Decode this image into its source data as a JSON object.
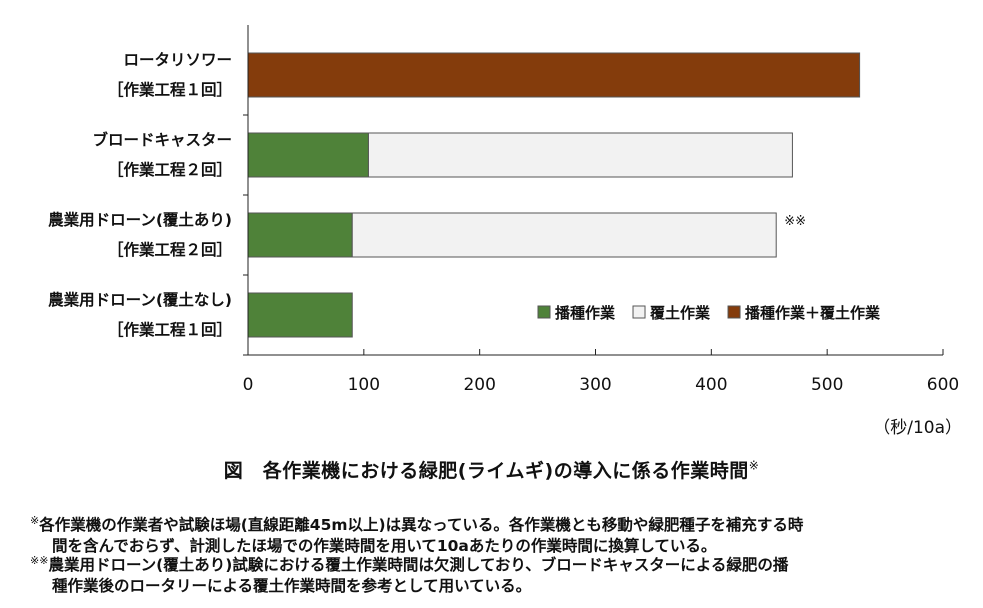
{
  "chart_data": {
    "type": "bar",
    "orientation": "horizontal",
    "stacked": true,
    "categories": [
      {
        "name": "ロータリソワー",
        "sub": "［作業工程１回］"
      },
      {
        "name": "ブロードキャスター",
        "sub": "［作業工程２回］"
      },
      {
        "name": "農業用ドローン(覆土あり)",
        "sub": "［作業工程２回］"
      },
      {
        "name": "農業用ドローン(覆土なし)",
        "sub": "［作業工程１回］"
      }
    ],
    "series": [
      {
        "name": "播種作業",
        "color": "#4f8239",
        "values": [
          0,
          104,
          90,
          90
        ]
      },
      {
        "name": "覆土作業",
        "color": "#f2f2f2",
        "values": [
          0,
          366,
          366,
          0
        ]
      },
      {
        "name": "播種作業＋覆土作業",
        "color": "#843c0c",
        "values": [
          528,
          0,
          0,
          0
        ]
      }
    ],
    "xlim": [
      0,
      600
    ],
    "xticks": [
      "0",
      "100",
      "200",
      "300",
      "400",
      "500",
      "600"
    ],
    "unit_label": "（秒/10a）",
    "bar_annotation": {
      "category_index": 2,
      "text": "※※"
    },
    "grid": false,
    "legend_position": "bottom-right"
  },
  "caption": {
    "text": "図　各作業機における緑肥(ライムギ)の導入に係る作業時間",
    "mark": "※"
  },
  "notes": [
    {
      "mark": "※",
      "line1": "各作業機の作業者や試験ほ場(直線距離45m以上)は異なっている。各作業機とも移動や緑肥種子を補充する時",
      "line2": "間を含んでおらず、計測したほ場での作業時間を用いて10aあたりの作業時間に換算している。"
    },
    {
      "mark": "※※",
      "line1": "農業用ドローン(覆土あり)試験における覆土作業時間は欠測しており、ブロードキャスターによる緑肥の播",
      "line2": "種作業後のロータリーによる覆土作業時間を参考として用いている。"
    }
  ]
}
